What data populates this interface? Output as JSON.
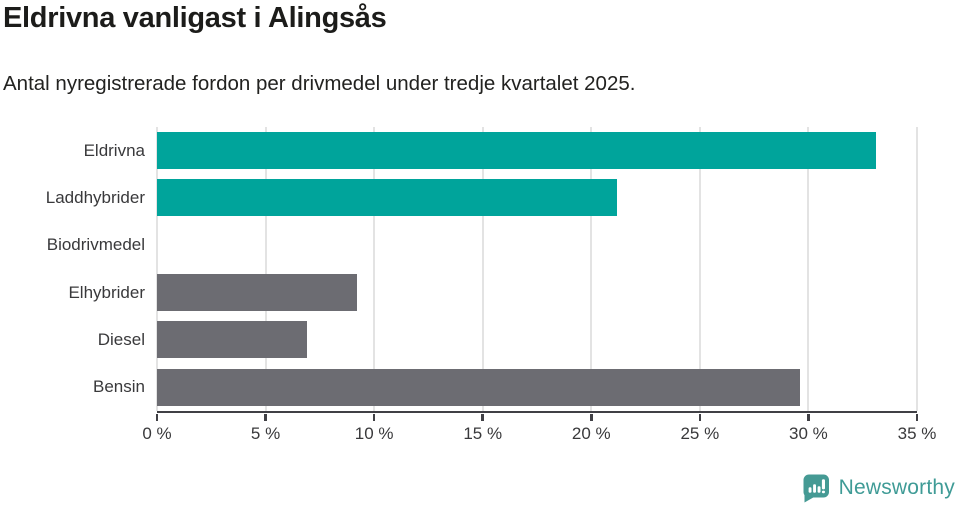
{
  "header": {
    "title": "Eldrivna vanligast i Alingsås",
    "subtitle": "Antal nyregistrerade fordon per drivmedel under tredje kvartalet 2025."
  },
  "chart_data": {
    "type": "bar",
    "orientation": "horizontal",
    "title": "Eldrivna vanligast i Alingsås",
    "subtitle": "Antal nyregistrerade fordon per drivmedel under tredje kvartalet 2025.",
    "categories": [
      "Eldrivna",
      "Laddhybrider",
      "Biodrivmedel",
      "Elhybrider",
      "Diesel",
      "Bensin"
    ],
    "values": [
      33.1,
      21.2,
      0,
      9.2,
      6.9,
      29.6
    ],
    "unit": "%",
    "xlim": [
      0,
      35
    ],
    "x_tick_step": 5,
    "x_tick_labels": [
      "0 %",
      "5 %",
      "10 %",
      "15 %",
      "20 %",
      "25 %",
      "30 %",
      "35 %"
    ],
    "grid": "vertical-light",
    "legend": "none",
    "bar_colors": [
      "#00a49b",
      "#00a49b",
      "#6c6c72",
      "#6c6c72",
      "#6c6c72",
      "#6c6c72"
    ],
    "highlight_color": "#00a49b",
    "default_color": "#6c6c72",
    "gridline_color": "#e3e3e3",
    "axis_color": "#404045"
  },
  "footer": {
    "brand": "Newsworthy",
    "logo_icon": "speech-bubble-bar-chart-icon",
    "brand_color": "#3f9b96",
    "logo_color": "#459a94"
  }
}
